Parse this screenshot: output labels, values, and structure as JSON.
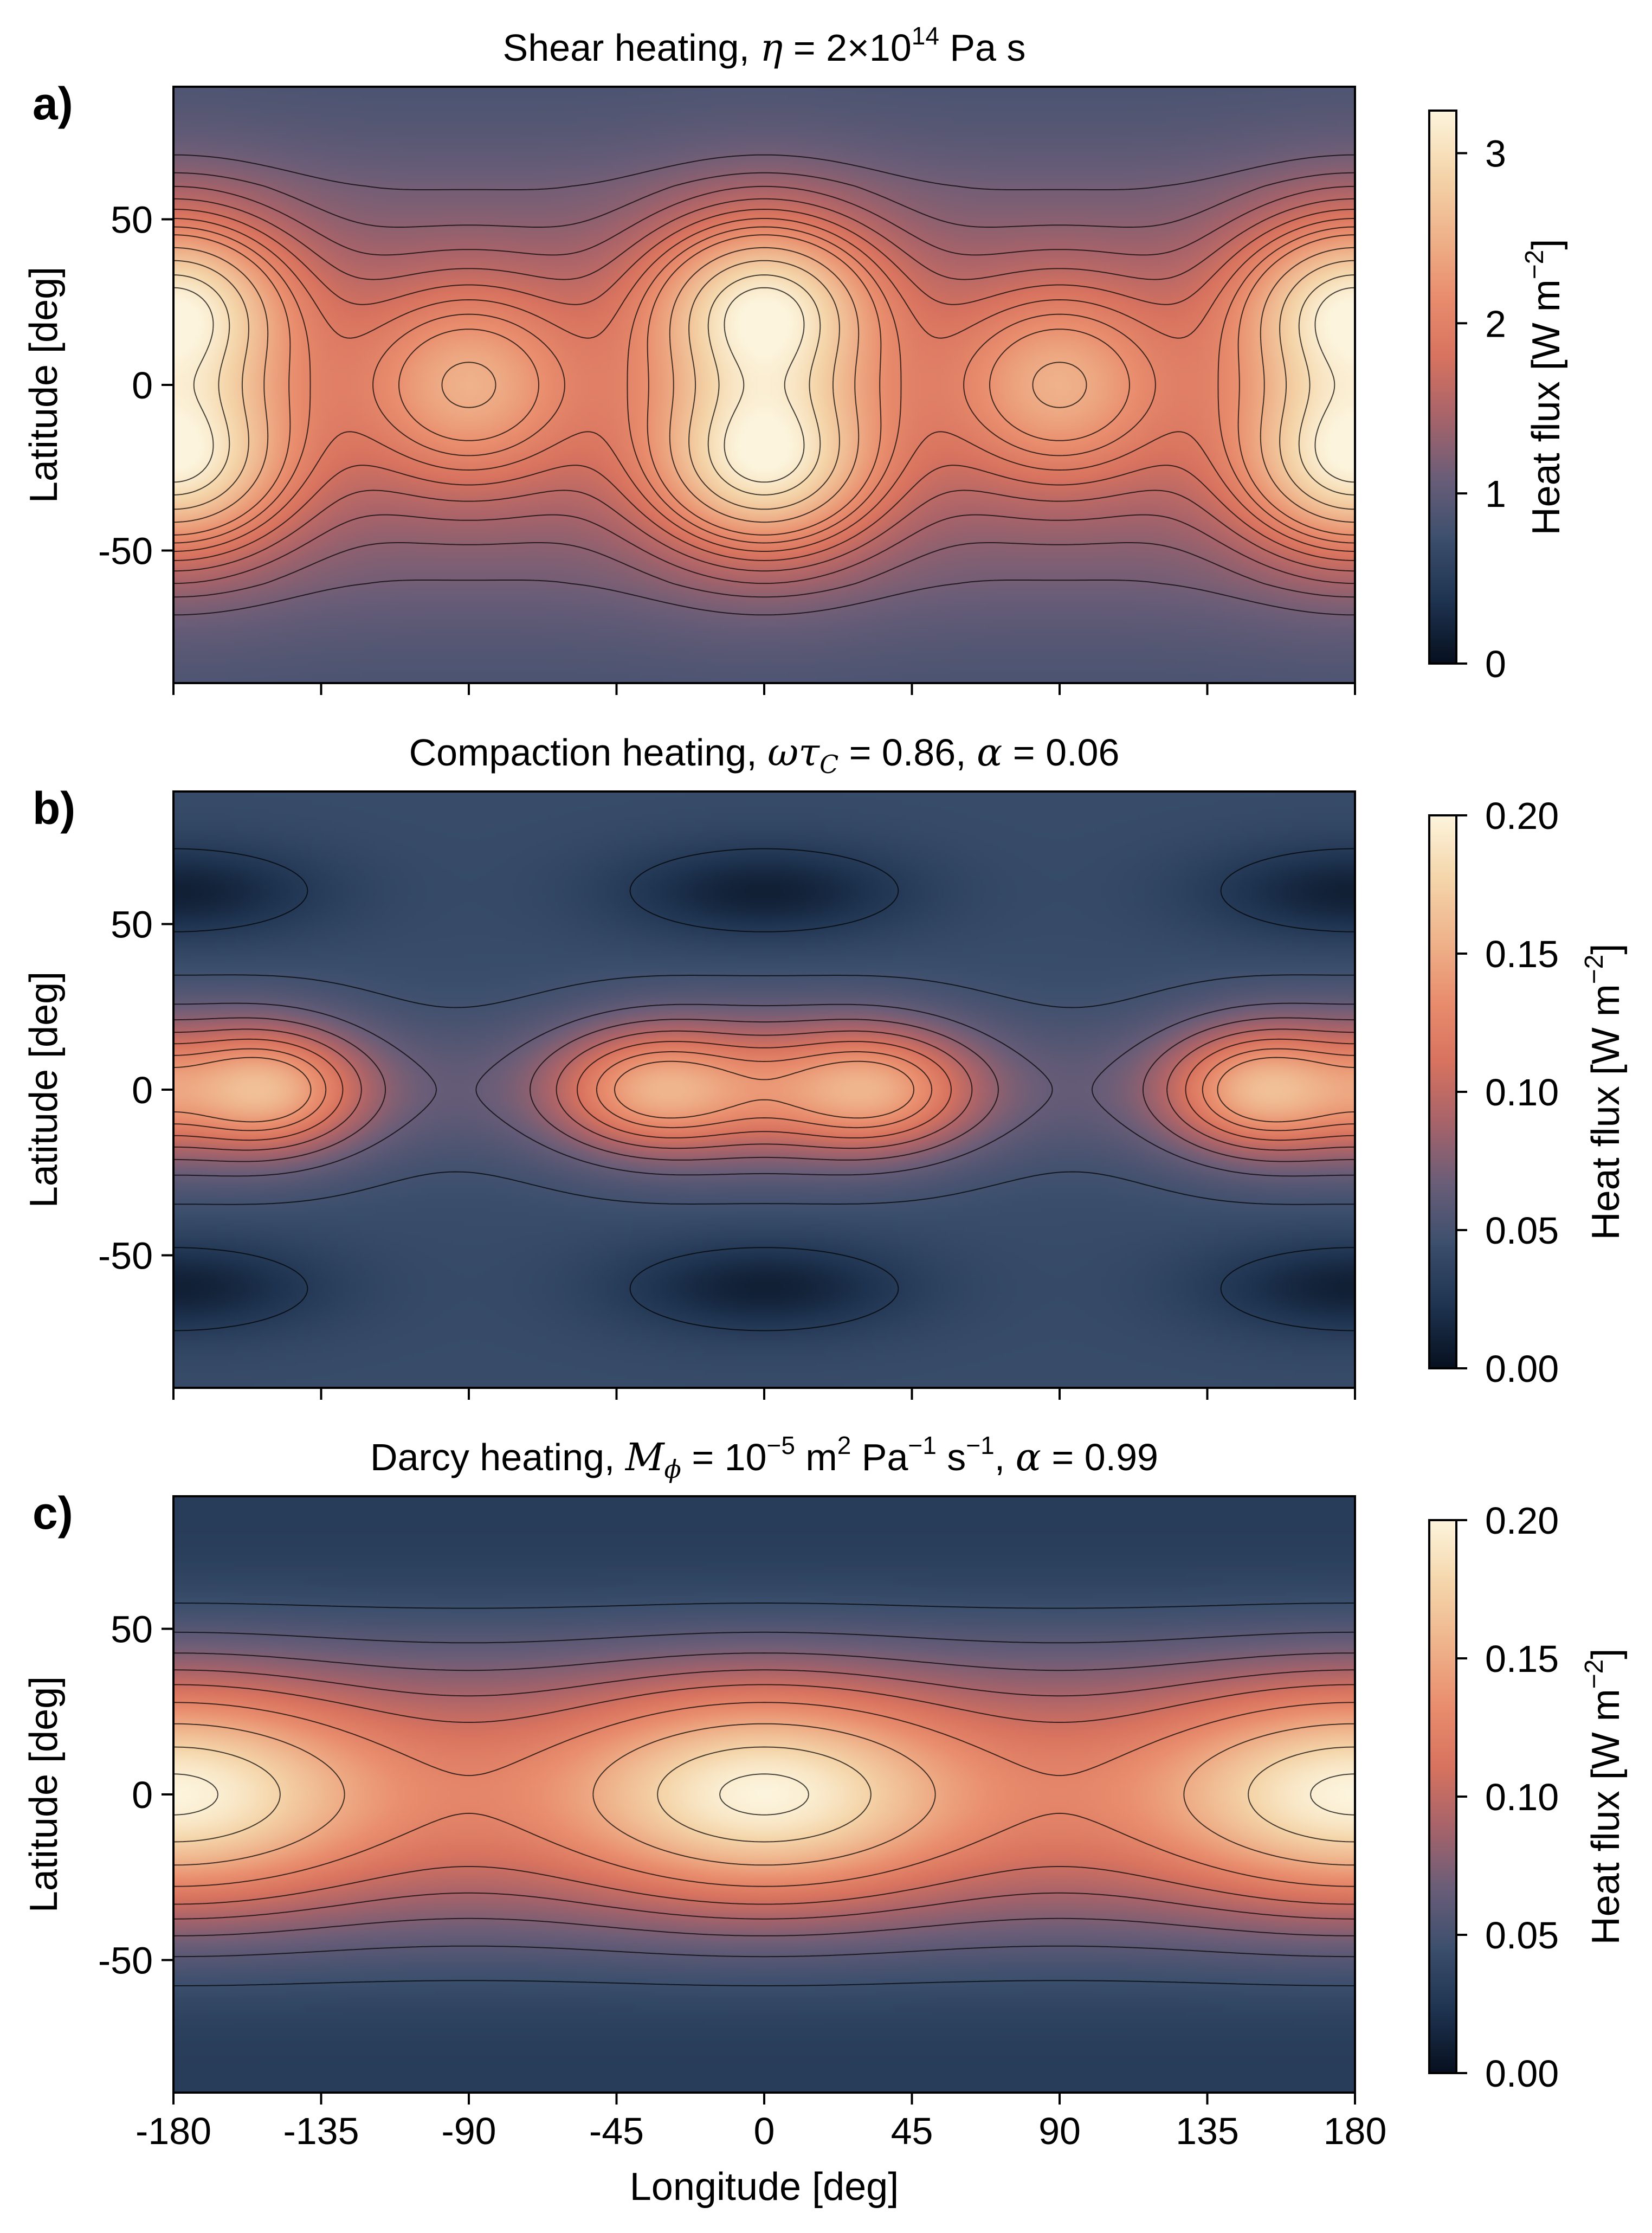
{
  "colors": {
    "colormap": [
      "#07101f",
      "#1e3350",
      "#3b4f6d",
      "#6a5d78",
      "#a7636a",
      "#d8735f",
      "#e98e6e",
      "#efb48c",
      "#f5d6ab",
      "#fcf4dc"
    ],
    "contour": "#000000",
    "axis": "#000000"
  },
  "chart_data": [
    {
      "type": "heatmap",
      "panel_label": "a)",
      "title": {
        "prefix": "Shear heating, ",
        "math": "η",
        "suffix": " = 2×10",
        "sup": "14",
        "end": " Pa s"
      },
      "xlabel": "",
      "ylabel": "Latitude [deg]",
      "xlim": [
        -180,
        180
      ],
      "ylim": [
        -90,
        90
      ],
      "xticks": [
        -180,
        -135,
        -90,
        -45,
        0,
        45,
        90,
        135,
        180
      ],
      "xtick_labels_shown": false,
      "yticks": [
        -50,
        0,
        50
      ],
      "ytick_labels": [
        "-50",
        "0",
        "50"
      ],
      "colorbar": {
        "label": "Heat flux [W m",
        "label_sup": "−2",
        "label_end": "]",
        "min": 0,
        "max": 3.25,
        "ticks": [
          0,
          1,
          2,
          3
        ],
        "tick_labels": [
          "0",
          "1",
          "2",
          "3"
        ]
      },
      "field": {
        "pattern": "shear",
        "description_values": {
          "peaks": [
            [
              -180,
              25
            ],
            [
              -180,
              -25
            ],
            [
              0,
              25
            ],
            [
              0,
              -25
            ],
            [
              180,
              25
            ],
            [
              180,
              -25
            ],
            [
              -90,
              0
            ],
            [
              90,
              0
            ]
          ],
          "peak_value": 3.2,
          "secondary_peak_value": 2.5,
          "pole_value": 1.0
        }
      },
      "contour_levels": [
        1.15,
        1.3,
        1.45,
        1.6,
        1.75,
        1.9,
        2.05,
        2.2,
        2.45,
        2.7,
        2.95,
        3.13
      ]
    },
    {
      "type": "heatmap",
      "panel_label": "b)",
      "title": {
        "prefix": "Compaction heating, ",
        "math": "ωτ",
        "math_sub": "C",
        "suffix": " = 0.86, ",
        "math2": "α",
        "end": " = 0.06"
      },
      "xlabel": "",
      "ylabel": "Latitude [deg]",
      "xlim": [
        -180,
        180
      ],
      "ylim": [
        -90,
        90
      ],
      "xticks": [
        -180,
        -135,
        -90,
        -45,
        0,
        45,
        90,
        135,
        180
      ],
      "xtick_labels_shown": false,
      "yticks": [
        -50,
        0,
        50
      ],
      "ytick_labels": [
        "-50",
        "0",
        "50"
      ],
      "colorbar": {
        "label": "Heat flux [W m",
        "label_sup": "−2",
        "label_end": "]",
        "min": 0,
        "max": 0.2,
        "ticks": [
          0,
          0.05,
          0.1,
          0.15,
          0.2
        ],
        "tick_labels": [
          "0.00",
          "0.05",
          "0.10",
          "0.15",
          "0.20"
        ]
      },
      "field": {
        "pattern": "compaction",
        "description_values": {
          "peaks": [
            [
              -150,
              0
            ],
            [
              -35,
              0
            ],
            [
              35,
              0
            ],
            [
              150,
              0
            ]
          ],
          "peak_value": 0.155,
          "minima": [
            [
              -180,
              60
            ],
            [
              0,
              60
            ],
            [
              180,
              60
            ],
            [
              -180,
              -60
            ],
            [
              0,
              -60
            ],
            [
              180,
              -60
            ]
          ],
          "min_value": 0.01,
          "background": 0.04
        }
      },
      "contour_levels": [
        0.028,
        0.048,
        0.065,
        0.08,
        0.095,
        0.11,
        0.125,
        0.138
      ]
    },
    {
      "type": "heatmap",
      "panel_label": "c)",
      "title": {
        "prefix": "Darcy heating, ",
        "math": "M",
        "math_sub": "ϕ",
        "suffix": " = 10",
        "sup": "−5",
        "mid": " m",
        "sup2": "2",
        "mid2": " Pa",
        "sup3": "−1",
        "mid3": " s",
        "sup4": "−1",
        "mid4": ", ",
        "math2": "α",
        "end": " = 0.99"
      },
      "xlabel": "Longitude [deg]",
      "ylabel": "Latitude [deg]",
      "xlim": [
        -180,
        180
      ],
      "ylim": [
        -90,
        90
      ],
      "xticks": [
        -180,
        -135,
        -90,
        -45,
        0,
        45,
        90,
        135,
        180
      ],
      "xtick_labels": [
        "-180",
        "-135",
        "-90",
        "-45",
        "0",
        "45",
        "90",
        "135",
        "180"
      ],
      "xtick_labels_shown": true,
      "yticks": [
        -50,
        0,
        50
      ],
      "ytick_labels": [
        "-50",
        "0",
        "50"
      ],
      "colorbar": {
        "label": "Heat flux [W m",
        "label_sup": "−2",
        "label_end": "]",
        "min": 0,
        "max": 0.2,
        "ticks": [
          0,
          0.05,
          0.1,
          0.15,
          0.2
        ],
        "tick_labels": [
          "0.00",
          "0.05",
          "0.10",
          "0.15",
          "0.20"
        ]
      },
      "field": {
        "pattern": "darcy",
        "description_values": {
          "peaks": [
            [
              -180,
              0
            ],
            [
              0,
              0
            ],
            [
              180,
              0
            ]
          ],
          "peak_value": 0.2,
          "saddle_value": 0.115,
          "pole_value": 0.03
        }
      },
      "contour_levels": [
        0.045,
        0.06,
        0.075,
        0.09,
        0.105,
        0.125,
        0.15,
        0.175,
        0.195
      ]
    }
  ]
}
